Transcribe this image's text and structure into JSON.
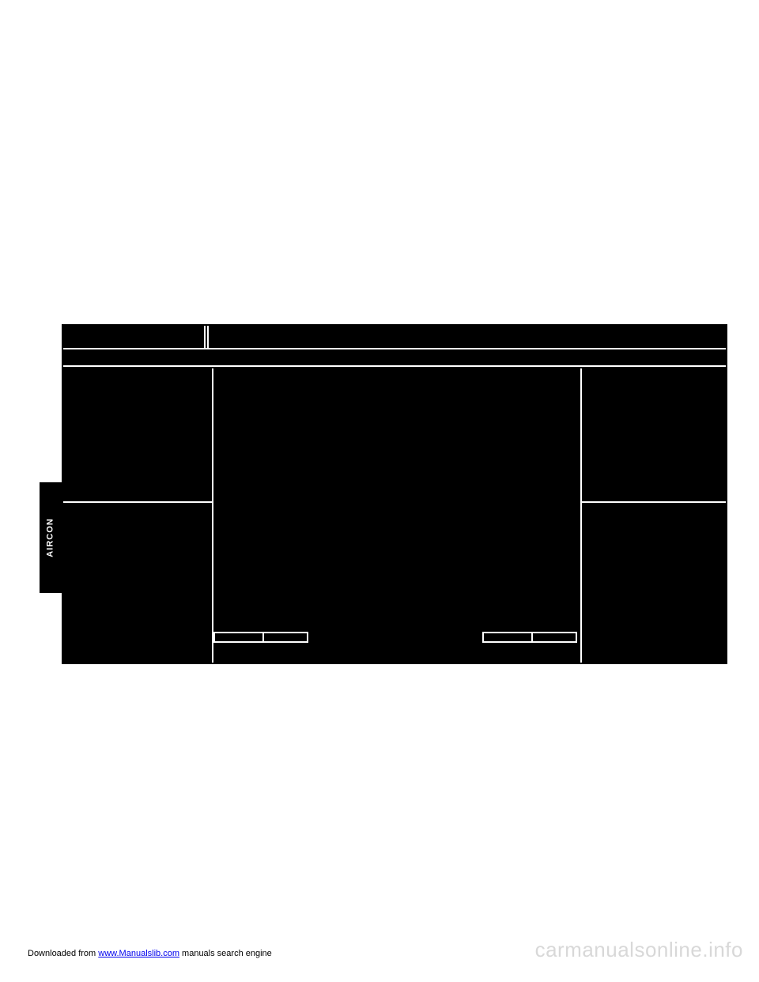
{
  "sidetab": {
    "label": "AIRCON"
  },
  "footer": {
    "prefix": "Downloaded from ",
    "link_text": "www.Manualslib.com",
    "suffix": " manuals search engine"
  },
  "watermark": {
    "text": "carmanualsonline.info"
  },
  "colors": {
    "page_bg": "#ffffff",
    "diagram_fill": "#000000",
    "diagram_line": "#ffffff",
    "link": "#0000ee",
    "watermark": "#d8d8d8"
  }
}
